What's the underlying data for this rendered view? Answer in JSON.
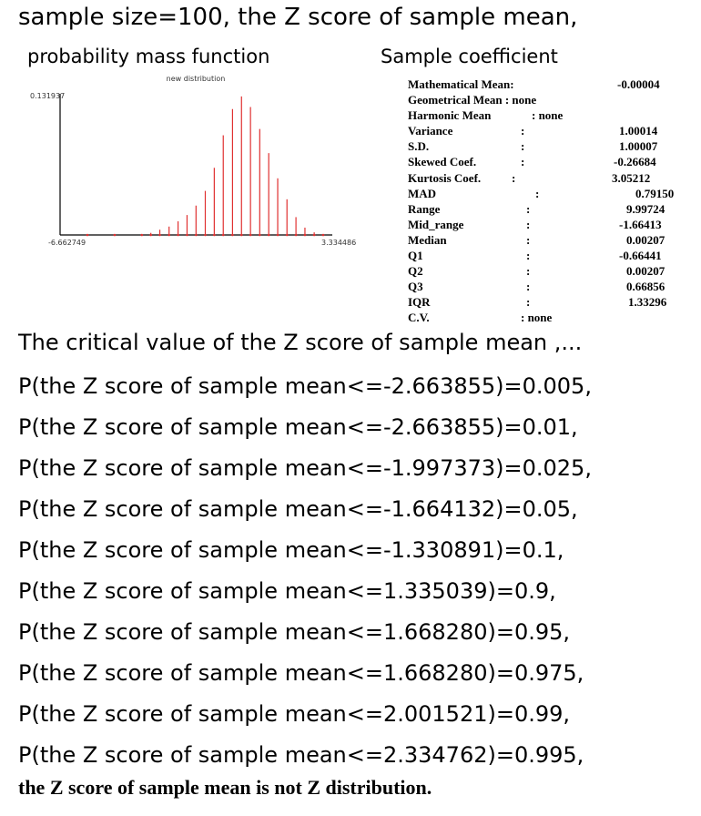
{
  "header": {
    "title": "sample size=100, the Z score of sample mean,",
    "pmf_title": "probability mass function",
    "coef_title": "Sample coefficient"
  },
  "chart_data": {
    "type": "bar",
    "title": "new distribution",
    "y_max_label": "0.131937",
    "x_min_label": "-6.662749",
    "x_max_label": "3.334486",
    "x_range": [
      -6.662749,
      3.334486
    ],
    "ylim": [
      0,
      0.131937
    ],
    "bar_color": "#e03030",
    "x": [
      -5.66,
      -4.66,
      -3.66,
      -3.33,
      -3.0,
      -2.66,
      -2.33,
      -2.0,
      -1.67,
      -1.33,
      -1.0,
      -0.67,
      -0.33,
      0.0,
      0.33,
      0.67,
      1.0,
      1.33,
      1.67,
      2.0,
      2.33,
      2.67,
      3.0
    ],
    "values": [
      0.0,
      0.0,
      0.0,
      0.002,
      0.005,
      0.008,
      0.013,
      0.019,
      0.028,
      0.042,
      0.064,
      0.095,
      0.12,
      0.132,
      0.122,
      0.101,
      0.078,
      0.054,
      0.034,
      0.017,
      0.007,
      0.0025,
      0.0
    ]
  },
  "stats": [
    {
      "label": "Mathematical Mean:",
      "colon": "",
      "value": "-0.00004"
    },
    {
      "label": "Geometrical Mean : none",
      "colon": "",
      "value": ""
    },
    {
      "label": "Harmonic Mean",
      "colon": ": none",
      "value": ""
    },
    {
      "label": "Variance",
      "colon": ":",
      "value": "1.00014"
    },
    {
      "label": "S.D.",
      "colon": ":",
      "value": "1.00007"
    },
    {
      "label": "Skewed Coef.",
      "colon": ":",
      "value": "-0.26684"
    },
    {
      "label": "Kurtosis Coef.",
      "colon": ":",
      "value": "3.05212"
    },
    {
      "label": "MAD",
      "colon": ":",
      "value": "0.79150"
    },
    {
      "label": "Range",
      "colon": ":",
      "value": "9.99724"
    },
    {
      "label": "Mid_range",
      "colon": ":",
      "value": "-1.66413"
    },
    {
      "label": "Median",
      "colon": ":",
      "value": "0.00207"
    },
    {
      "label": "Q1",
      "colon": ":",
      "value": "-0.66441"
    },
    {
      "label": "Q2",
      "colon": ":",
      "value": "0.00207"
    },
    {
      "label": "Q3",
      "colon": ":",
      "value": "0.66856"
    },
    {
      "label": "IQR",
      "colon": ":",
      "value": "1.33296"
    },
    {
      "label": "C.V.",
      "colon": ": none",
      "value": ""
    }
  ],
  "critical": {
    "heading": "The critical value of the Z score of sample mean ,...",
    "items": [
      "P(the Z score of sample mean<=-2.663855)=0.005,",
      "P(the Z score of sample mean<=-2.663855)=0.01,",
      "P(the Z score of sample mean<=-1.997373)=0.025,",
      "P(the Z score of sample mean<=-1.664132)=0.05,",
      "P(the Z score of sample mean<=-1.330891)=0.1,",
      "P(the Z score of sample mean<=1.335039)=0.9,",
      "P(the Z score of sample mean<=1.668280)=0.95,",
      "P(the Z score of sample mean<=1.668280)=0.975,",
      "P(the Z score of sample mean<=2.001521)=0.99,",
      "P(the Z score of sample mean<=2.334762)=0.995,"
    ],
    "conclusion": "the Z score of sample mean is not Z distribution."
  }
}
